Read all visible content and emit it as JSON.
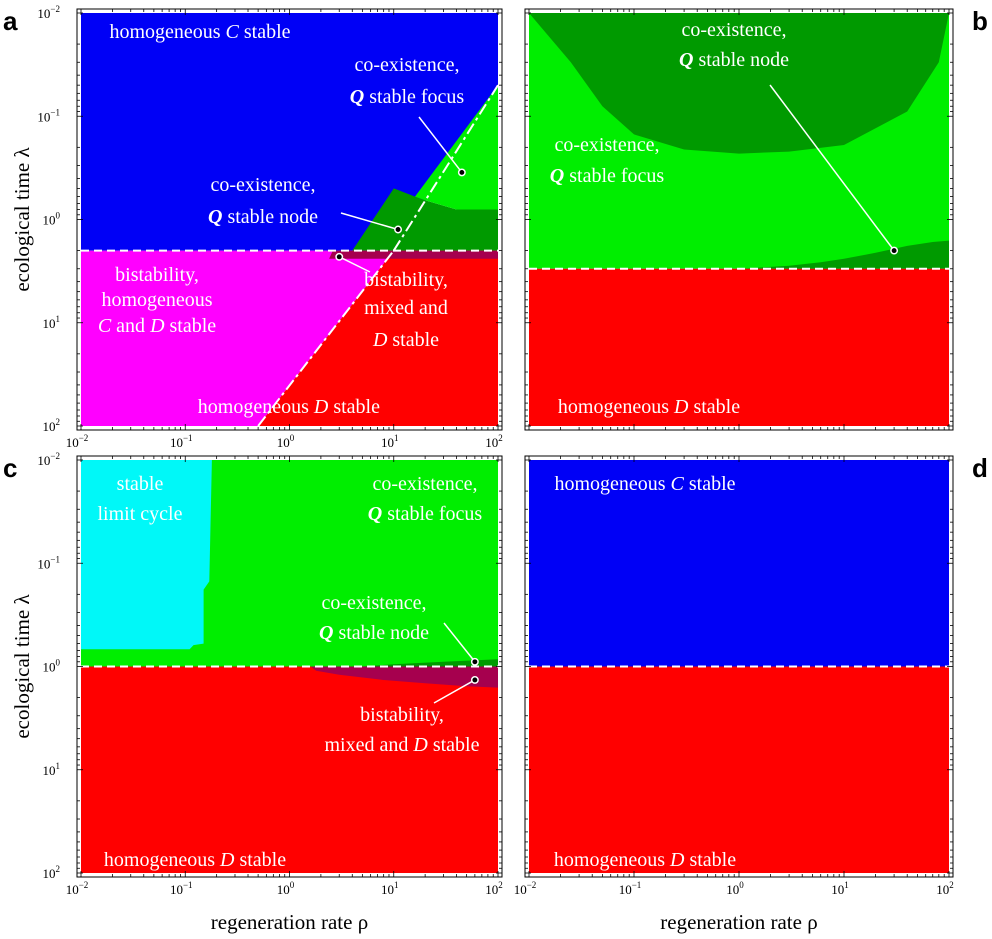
{
  "chart_data": [
    {
      "panel": "a",
      "type": "heatmap",
      "xlabel": "regeneration rate ρ",
      "ylabel": "ecological time λ",
      "x_scale": "log",
      "y_scale": "log",
      "y_inverted": true,
      "xlim": [
        0.01,
        100
      ],
      "ylim": [
        0.01,
        100
      ],
      "x_ticks": [
        "10",
        "10",
        "10",
        "10",
        "10"
      ],
      "x_tick_exps": [
        "−2",
        "−1",
        "0",
        "1",
        "2"
      ],
      "y_ticks": [
        "10",
        "10",
        "10",
        "10",
        "10"
      ],
      "y_tick_exps": [
        "−2",
        "−1",
        "0",
        "1",
        "2"
      ],
      "regions": [
        {
          "state": "C",
          "color": "#0000f6",
          "description": "homogeneous C stable",
          "bounds": "λ < 2, ρ above diagonal λ = ρ/5"
        },
        {
          "state": "G",
          "color": "#00ee00",
          "description": "co-existence, Q stable focus",
          "bounds": "wedge, ρ 8–100, λ 0.05–0.8"
        },
        {
          "state": "g",
          "color": "#009a00",
          "description": "co-existence, Q stable node",
          "bounds": "band, ρ 2–100, λ 0.8–2"
        },
        {
          "state": "M",
          "color": "#ff00ff",
          "description": "bistability, homogeneous C and D stable",
          "bounds": "λ 2–100, ρ < 5λ"
        },
        {
          "state": "P",
          "color": "#a6004e",
          "description": "bistability, mixed and D stable",
          "bounds": "thin band ρ 2.6–100, λ 2–2.3"
        },
        {
          "state": "R",
          "color": "#ff0000",
          "description": "homogeneous D stable",
          "bounds": "λ > 2, ρ > 5λ"
        }
      ],
      "boundaries": [
        {
          "style": "dashed",
          "at": "λ = 2"
        },
        {
          "style": "dash-dot",
          "at": "λ = ρ/5"
        }
      ],
      "annotations": [
        {
          "lines": [
            {
              "text": "homogeneous "
            },
            {
              "text": "C",
              "italic": true
            },
            {
              "text": " stable"
            }
          ]
        },
        {
          "lines": [
            {
              "text": "co-existence,"
            }
          ]
        },
        {
          "lines": [
            {
              "text": "Q",
              "bold": true,
              "italic": true
            },
            {
              "text": " stable focus"
            }
          ]
        },
        {
          "lines": [
            {
              "text": "co-existence,"
            }
          ]
        },
        {
          "lines": [
            {
              "text": "Q",
              "bold": true,
              "italic": true
            },
            {
              "text": " stable node"
            }
          ]
        },
        {
          "lines": [
            {
              "text": "bistability,"
            }
          ]
        },
        {
          "lines": [
            {
              "text": "homogeneous"
            }
          ]
        },
        {
          "lines": [
            {
              "text": "C",
              "italic": true
            },
            {
              "text": " and "
            },
            {
              "text": "D",
              "italic": true
            },
            {
              "text": " stable"
            }
          ]
        },
        {
          "lines": [
            {
              "text": "bistability,"
            }
          ]
        },
        {
          "lines": [
            {
              "text": "mixed and"
            }
          ]
        },
        {
          "lines": [
            {
              "text": "D",
              "italic": true
            },
            {
              "text": " stable"
            }
          ]
        },
        {
          "lines": [
            {
              "text": "homogeneous "
            },
            {
              "text": "D",
              "italic": true
            },
            {
              "text": " stable"
            }
          ]
        }
      ],
      "pointers": [
        {
          "from": [
            45,
            0.35
          ],
          "label": "co-existence, Q stable focus"
        },
        {
          "from": [
            11,
            1.25
          ],
          "label": "co-existence, Q stable node"
        },
        {
          "from": [
            3,
            2.3
          ],
          "label": "bistability, mixed and D stable"
        }
      ]
    },
    {
      "panel": "b",
      "type": "heatmap",
      "x_scale": "log",
      "y_scale": "log",
      "y_inverted": true,
      "xlim": [
        0.01,
        100
      ],
      "ylim": [
        0.01,
        100
      ],
      "regions": [
        {
          "state": "g",
          "color": "#009a00",
          "description": "co-existence, Q stable node",
          "bounds": "top arch and staircase band above λ = 3"
        },
        {
          "state": "G",
          "color": "#00ee00",
          "description": "co-existence, Q stable focus",
          "bounds": "λ < 3"
        },
        {
          "state": "R",
          "color": "#ff0000",
          "description": "homogeneous D stable",
          "bounds": "λ > 3"
        }
      ],
      "boundaries": [
        {
          "style": "dashed",
          "at": "λ = 3"
        }
      ],
      "annotations": [
        {
          "lines": [
            {
              "text": "co-existence,"
            }
          ]
        },
        {
          "lines": [
            {
              "text": "Q",
              "bold": true,
              "italic": true
            },
            {
              "text": " stable node"
            }
          ]
        },
        {
          "lines": [
            {
              "text": "co-existence,"
            }
          ]
        },
        {
          "lines": [
            {
              "text": "Q",
              "bold": true,
              "italic": true
            },
            {
              "text": " stable focus"
            }
          ]
        },
        {
          "lines": [
            {
              "text": "homogeneous "
            },
            {
              "text": "D",
              "italic": true
            },
            {
              "text": " stable"
            }
          ]
        }
      ],
      "pointers": [
        {
          "from": [
            30,
            2.0
          ],
          "label": "co-existence, Q stable node"
        }
      ]
    },
    {
      "panel": "c",
      "type": "heatmap",
      "xlabel": "regeneration rate ρ",
      "ylabel": "ecological time λ",
      "x_scale": "log",
      "y_scale": "log",
      "y_inverted": true,
      "xlim": [
        0.01,
        100
      ],
      "ylim": [
        0.01,
        100
      ],
      "x_ticks": [
        "10",
        "10",
        "10",
        "10",
        "10"
      ],
      "x_tick_exps": [
        "−2",
        "−1",
        "0",
        "1",
        "2"
      ],
      "y_ticks": [
        "10",
        "10",
        "10",
        "10",
        "10"
      ],
      "y_tick_exps": [
        "−2",
        "−1",
        "0",
        "1",
        "2"
      ],
      "regions": [
        {
          "state": "Y",
          "color": "#00f8f8",
          "description": "stable limit cycle",
          "bounds": "ρ < 0.15, λ < 0.7"
        },
        {
          "state": "G",
          "color": "#00ee00",
          "description": "co-existence, Q stable focus",
          "bounds": "λ < 1"
        },
        {
          "state": "g",
          "color": "#009a00",
          "description": "co-existence, Q stable node",
          "bounds": "thin band near λ = 1, ρ 6–100"
        },
        {
          "state": "P",
          "color": "#a6004e",
          "description": "bistability, mixed and D stable",
          "bounds": "band λ 1–1.6, ρ 1.6–100"
        },
        {
          "state": "R",
          "color": "#ff0000",
          "description": "homogeneous D stable",
          "bounds": "λ > 1"
        }
      ],
      "boundaries": [
        {
          "style": "dashed",
          "at": "λ = 1"
        }
      ],
      "annotations": [
        {
          "lines": [
            {
              "text": "stable"
            }
          ]
        },
        {
          "lines": [
            {
              "text": "limit cycle"
            }
          ]
        },
        {
          "lines": [
            {
              "text": "co-existence,"
            }
          ]
        },
        {
          "lines": [
            {
              "text": "Q",
              "bold": true,
              "italic": true
            },
            {
              "text": " stable focus"
            }
          ]
        },
        {
          "lines": [
            {
              "text": "co-existence,"
            }
          ]
        },
        {
          "lines": [
            {
              "text": "Q",
              "bold": true,
              "italic": true
            },
            {
              "text": " stable node"
            }
          ]
        },
        {
          "lines": [
            {
              "text": "bistability,"
            }
          ]
        },
        {
          "lines": [
            {
              "text": "mixed and "
            },
            {
              "text": "D",
              "italic": true
            },
            {
              "text": " stable"
            }
          ]
        },
        {
          "lines": [
            {
              "text": "homogeneous "
            },
            {
              "text": "D",
              "italic": true
            },
            {
              "text": " stable"
            }
          ]
        }
      ],
      "pointers": [
        {
          "from": [
            60,
            0.9
          ],
          "label": "co-existence, Q stable node"
        },
        {
          "from": [
            60,
            1.35
          ],
          "label": "bistability, mixed and D stable"
        }
      ]
    },
    {
      "panel": "d",
      "type": "heatmap",
      "xlabel": "regeneration rate ρ",
      "x_scale": "log",
      "y_scale": "log",
      "y_inverted": true,
      "xlim": [
        0.01,
        100
      ],
      "ylim": [
        0.01,
        100
      ],
      "x_ticks": [
        "10",
        "10",
        "10",
        "10",
        "10"
      ],
      "x_tick_exps": [
        "−2",
        "−1",
        "0",
        "1",
        "2"
      ],
      "regions": [
        {
          "state": "C",
          "color": "#0000f6",
          "description": "homogeneous C stable",
          "bounds": "λ < 1"
        },
        {
          "state": "R",
          "color": "#ff0000",
          "description": "homogeneous D stable",
          "bounds": "λ > 1"
        }
      ],
      "boundaries": [
        {
          "style": "dashed",
          "at": "λ = 1"
        }
      ],
      "annotations": [
        {
          "lines": [
            {
              "text": "homogeneous "
            },
            {
              "text": "C",
              "italic": true
            },
            {
              "text": " stable"
            }
          ]
        },
        {
          "lines": [
            {
              "text": "homogeneous "
            },
            {
              "text": "D",
              "italic": true
            },
            {
              "text": " stable"
            }
          ]
        }
      ]
    }
  ],
  "panel_labels": [
    "a",
    "b",
    "c",
    "d"
  ],
  "colors": {
    "C": "#0000f6",
    "G": "#00ee00",
    "g": "#009a00",
    "M": "#ff00ff",
    "P": "#a6004e",
    "R": "#ff0000",
    "Y": "#00f8f8",
    "boundary": "#ffffff"
  }
}
